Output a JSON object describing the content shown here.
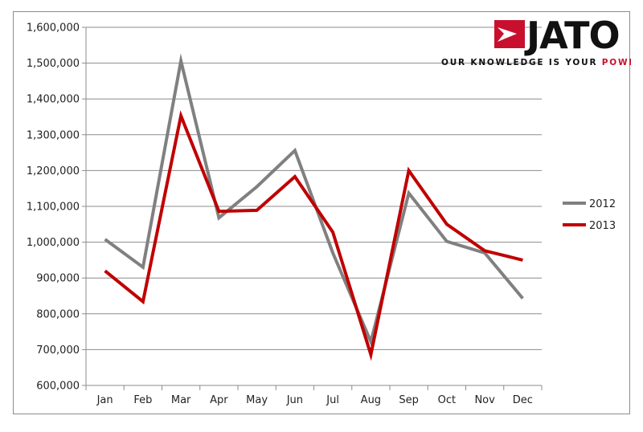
{
  "brand": {
    "name": "JATO",
    "tagline_main": "OUR KNOWLEDGE IS YOUR ",
    "tagline_accent": "POWER",
    "accent_color": "#c8102e",
    "logo_icon": "arrow-flag-icon"
  },
  "chart_data": {
    "type": "line",
    "categories": [
      "Jan",
      "Feb",
      "Mar",
      "Apr",
      "May",
      "Jun",
      "Jul",
      "Aug",
      "Sep",
      "Oct",
      "Nov",
      "Dec"
    ],
    "series": [
      {
        "name": "2012",
        "color": "#808080",
        "values": [
          1008000,
          930000,
          1506000,
          1068000,
          1155000,
          1256000,
          970000,
          722000,
          1137000,
          1002000,
          970000,
          843000
        ]
      },
      {
        "name": "2013",
        "color": "#c00000",
        "values": [
          920000,
          834000,
          1353000,
          1086000,
          1089000,
          1183000,
          1028000,
          686000,
          1200000,
          1050000,
          976000,
          950000
        ]
      }
    ],
    "y_ticks": [
      "600,000",
      "700,000",
      "800,000",
      "900,000",
      "1,000,000",
      "1,100,000",
      "1,200,000",
      "1,300,000",
      "1,400,000",
      "1,500,000",
      "1,600,000"
    ],
    "ylim": [
      600000,
      1600000
    ],
    "title": "",
    "xlabel": "",
    "ylabel": "",
    "grid": true,
    "legend_position": "right"
  }
}
